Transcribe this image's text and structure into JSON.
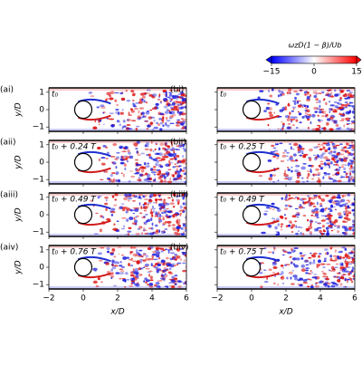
{
  "colorbar": {
    "label": "ωzD(1 − β)/Ub",
    "lim": [
      -15,
      15
    ],
    "ticks": [
      {
        "value": -15,
        "label": "−15"
      },
      0,
      15
    ]
  },
  "axes": {
    "xlabel": "x/D",
    "ylabel": "y/D",
    "xlim": [
      -2,
      6
    ],
    "ylim": [
      -1.25,
      1.25
    ],
    "xticks": [
      {
        "value": -2,
        "label": "−2"
      },
      0,
      2,
      4,
      6
    ],
    "yticks": [
      {
        "value": -1,
        "label": "−1"
      },
      0,
      1
    ]
  },
  "panels": [
    {
      "label": "(ai)",
      "time": "t₀"
    },
    {
      "label": "(aii)",
      "time": "t₀ + 0.24 T"
    },
    {
      "label": "(aiii)",
      "time": "t₀ + 0.49 T"
    },
    {
      "label": "(aiv)",
      "time": "t₀ + 0.76 T"
    },
    {
      "label": "(bi)",
      "time": "t₀"
    },
    {
      "label": "(bii)",
      "time": "t₀ + 0.25 T"
    },
    {
      "label": "(biii)",
      "time": "t₀ + 0.49 T"
    },
    {
      "label": "(biv)",
      "time": "t₀ + 0.75 T"
    }
  ]
}
